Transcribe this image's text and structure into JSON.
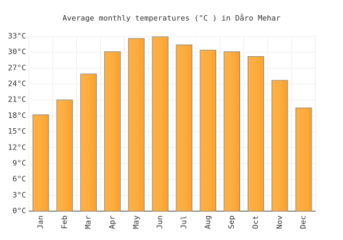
{
  "chart_data": {
    "type": "bar",
    "title": "Average monthly temperatures (°C ) in Dǟro Mehar",
    "categories": [
      "Jan",
      "Feb",
      "Mar",
      "Apr",
      "May",
      "Jun",
      "Jul",
      "Aug",
      "Sep",
      "Oct",
      "Nov",
      "Dec"
    ],
    "values": [
      18.2,
      21.0,
      25.9,
      30.1,
      32.6,
      32.9,
      31.4,
      30.4,
      30.1,
      29.2,
      24.7,
      19.5
    ],
    "color": "#fba733",
    "ylim": [
      0,
      33
    ],
    "yticks": [
      {
        "value": 0,
        "label": "0°C"
      },
      {
        "value": 3,
        "label": "3°C"
      },
      {
        "value": 6,
        "label": "6°C"
      },
      {
        "value": 9,
        "label": "9°C"
      },
      {
        "value": 12,
        "label": "12°C"
      },
      {
        "value": 15,
        "label": "15°C"
      },
      {
        "value": 18,
        "label": "18°C"
      },
      {
        "value": 21,
        "label": "21°C"
      },
      {
        "value": 24,
        "label": "24°C"
      },
      {
        "value": 27,
        "label": "27°C"
      },
      {
        "value": 30,
        "label": "30°C"
      },
      {
        "value": 33,
        "label": "33°C"
      }
    ],
    "grid": true
  }
}
